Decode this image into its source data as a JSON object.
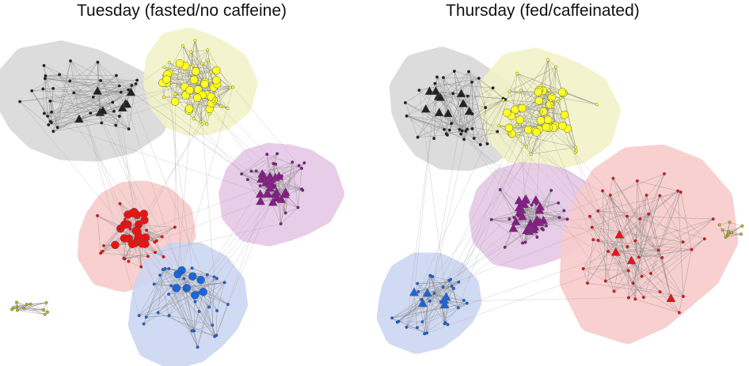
{
  "panels": [
    {
      "title": "Tuesday (fasted/no caffeine)",
      "clusters": [
        {
          "name": "gray",
          "color": "#222222",
          "hull": "#d9d9d9",
          "shape": "triangle"
        },
        {
          "name": "yellow",
          "color": "#ffff22",
          "hull": "#f2f2c8",
          "shape": "circle"
        },
        {
          "name": "purple",
          "color": "#8a1a8a",
          "hull": "#e6c8e6",
          "shape": "triangle"
        },
        {
          "name": "red",
          "color": "#ee1111",
          "hull": "#f8cccc",
          "shape": "circle"
        },
        {
          "name": "blue",
          "color": "#1a66dd",
          "hull": "#cdd6f2",
          "shape": "circle"
        },
        {
          "name": "olive",
          "color": "#b5b52a",
          "hull": null,
          "shape": "dot"
        }
      ]
    },
    {
      "title": "Thursday (fed/caffeinated)",
      "clusters": [
        {
          "name": "gray",
          "color": "#222222",
          "hull": "#d9d9d9",
          "shape": "triangle"
        },
        {
          "name": "yellow",
          "color": "#ffff22",
          "hull": "#f2f2c8",
          "shape": "circle"
        },
        {
          "name": "purple",
          "color": "#8a1a8a",
          "hull": "#e6c8e6",
          "shape": "triangle"
        },
        {
          "name": "red",
          "color": "#ee1111",
          "hull": "#f8cccc",
          "shape": "triangle"
        },
        {
          "name": "blue",
          "color": "#1a66dd",
          "hull": "#cdd6f2",
          "shape": "triangle"
        },
        {
          "name": "olive",
          "color": "#b5b52a",
          "hull": null,
          "shape": "dot"
        }
      ]
    }
  ]
}
